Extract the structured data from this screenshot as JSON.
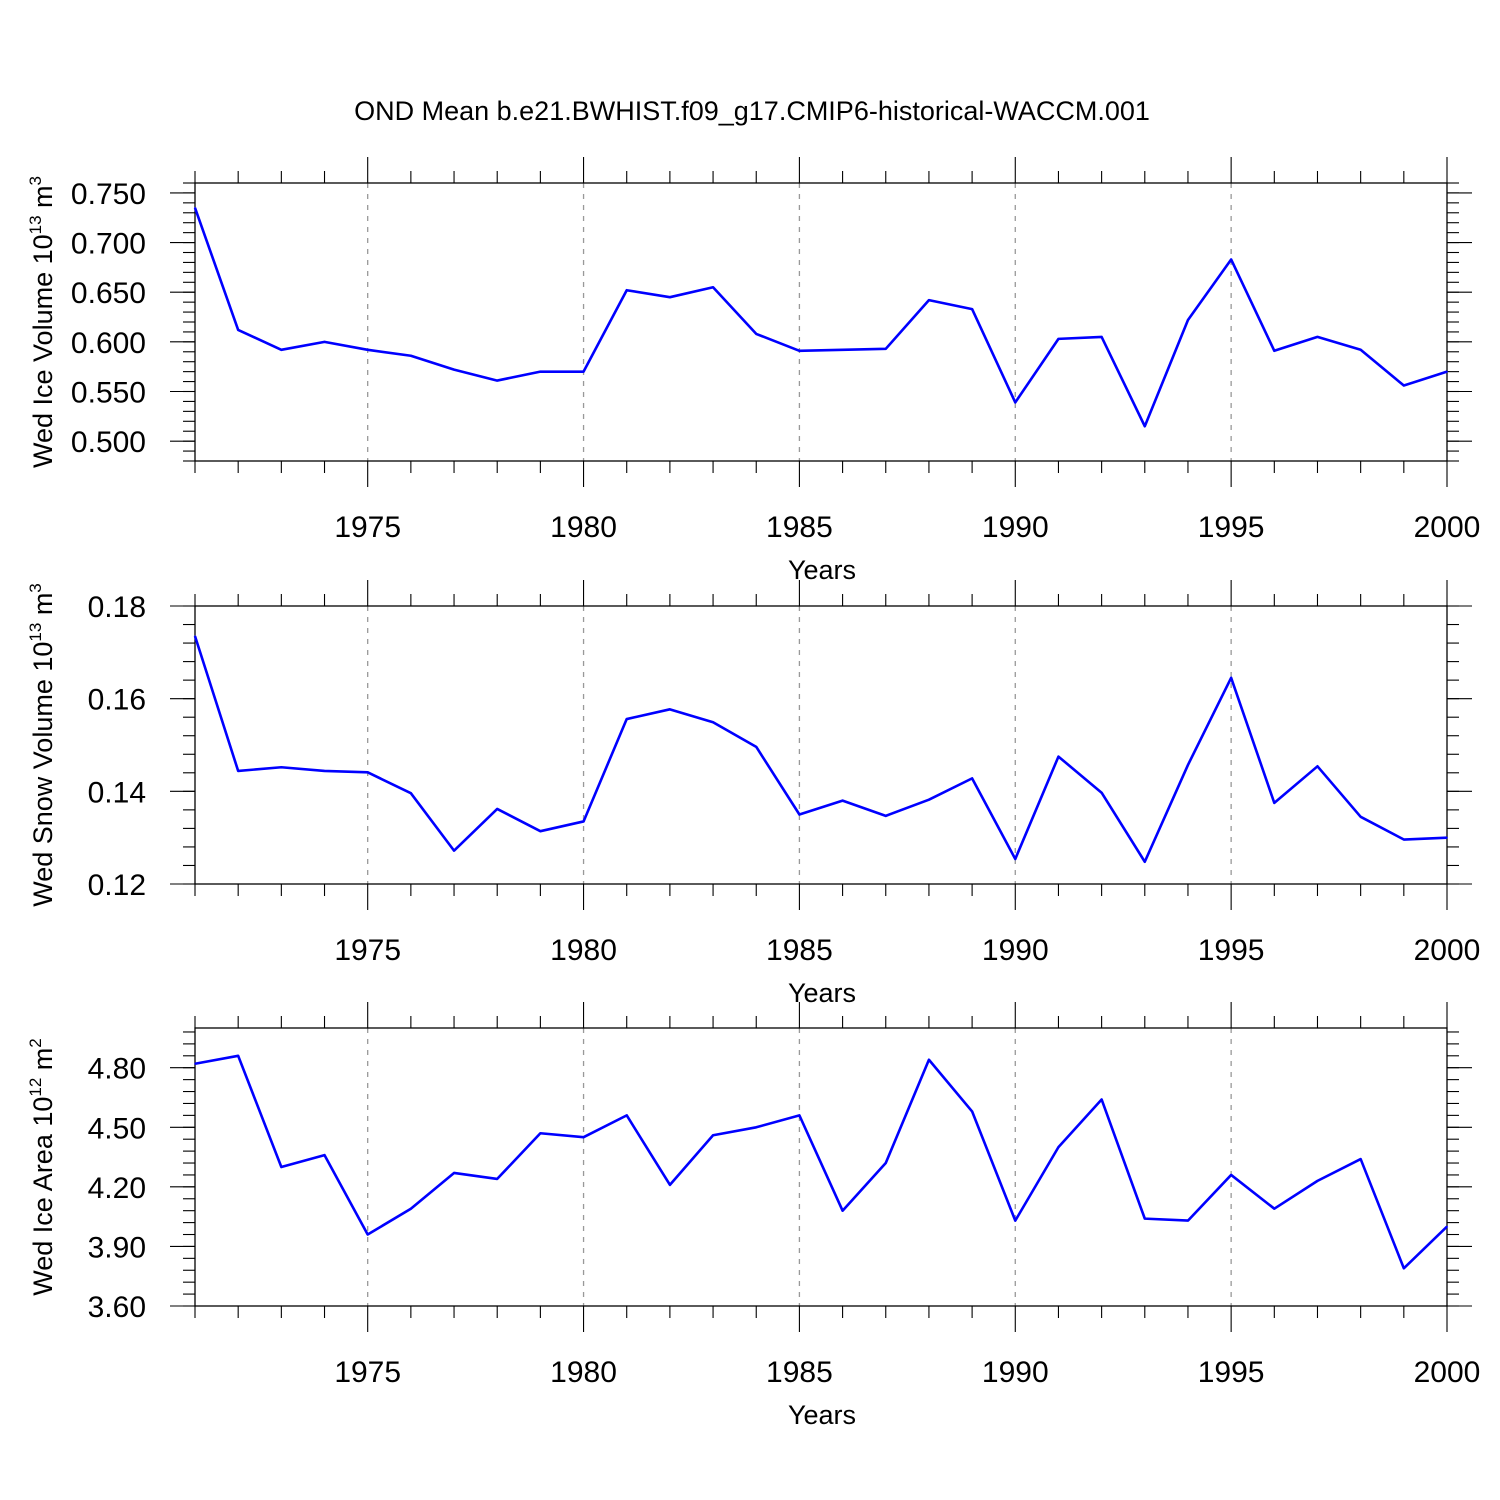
{
  "figure_title": "OND Mean b.e21.BWHIST.f09_g17.CMIP6-historical-WACCM.001",
  "colors": {
    "series": "#0000ff",
    "grid": "#999999",
    "axes": "#000000"
  },
  "chart_data": [
    {
      "type": "line",
      "ylabel": {
        "main": "Wed Ice Volume 10",
        "sup1": "13",
        "mid": " m",
        "sup2": "3"
      },
      "xlabel": "Years",
      "xlim": [
        1971,
        2000
      ],
      "ylim": [
        0.48,
        0.76
      ],
      "x_ticks": [
        "1975",
        "1980",
        "1985",
        "1990",
        "1995",
        "2000"
      ],
      "y_ticks": [
        "0.500",
        "0.550",
        "0.600",
        "0.650",
        "0.700",
        "0.750"
      ],
      "y_tick_values": [
        0.5,
        0.55,
        0.6,
        0.65,
        0.7,
        0.75
      ],
      "y_minor_step": 0.01,
      "grid": "vertical dashed at major x ticks",
      "x": [
        1971,
        1972,
        1973,
        1974,
        1975,
        1976,
        1977,
        1978,
        1979,
        1980,
        1981,
        1982,
        1983,
        1984,
        1985,
        1986,
        1987,
        1988,
        1989,
        1990,
        1991,
        1992,
        1993,
        1994,
        1995,
        1996,
        1997,
        1998,
        1999,
        2000
      ],
      "series": [
        {
          "values": [
            0.735,
            0.612,
            0.592,
            0.6,
            0.592,
            0.586,
            0.572,
            0.561,
            0.57,
            0.57,
            0.652,
            0.645,
            0.655,
            0.608,
            0.591,
            0.592,
            0.593,
            0.642,
            0.633,
            0.539,
            0.603,
            0.605,
            0.515,
            0.622,
            0.683,
            0.591,
            0.605,
            0.592,
            0.556,
            0.57
          ]
        }
      ]
    },
    {
      "type": "line",
      "ylabel": {
        "main": "Wed Snow Volume 10",
        "sup1": "13",
        "mid": " m",
        "sup2": "3"
      },
      "xlabel": "Years",
      "xlim": [
        1971,
        2000
      ],
      "ylim": [
        0.12,
        0.18
      ],
      "x_ticks": [
        "1975",
        "1980",
        "1985",
        "1990",
        "1995",
        "2000"
      ],
      "y_ticks": [
        "0.12",
        "0.14",
        "0.16",
        "0.18"
      ],
      "y_tick_values": [
        0.12,
        0.14,
        0.16,
        0.18
      ],
      "y_minor_step": 0.004,
      "grid": "vertical dashed at major x ticks",
      "x": [
        1971,
        1972,
        1973,
        1974,
        1975,
        1976,
        1977,
        1978,
        1979,
        1980,
        1981,
        1982,
        1983,
        1984,
        1985,
        1986,
        1987,
        1988,
        1989,
        1990,
        1991,
        1992,
        1993,
        1994,
        1995,
        1996,
        1997,
        1998,
        1999,
        2000
      ],
      "series": [
        {
          "values": [
            0.1735,
            0.1444,
            0.1452,
            0.1444,
            0.1441,
            0.1396,
            0.1272,
            0.1362,
            0.1314,
            0.1335,
            0.1556,
            0.1577,
            0.1549,
            0.1496,
            0.135,
            0.138,
            0.1347,
            0.1382,
            0.1428,
            0.1254,
            0.1475,
            0.1397,
            0.1248,
            0.1457,
            0.1645,
            0.1375,
            0.1454,
            0.1345,
            0.1296,
            0.13
          ]
        }
      ]
    },
    {
      "type": "line",
      "ylabel": {
        "main": "Wed Ice Area 10",
        "sup1": "12",
        "mid": " m",
        "sup2": "2"
      },
      "xlabel": "Years",
      "xlim": [
        1971,
        2000
      ],
      "ylim": [
        3.6,
        5.0
      ],
      "x_ticks": [
        "1975",
        "1980",
        "1985",
        "1990",
        "1995",
        "2000"
      ],
      "y_ticks": [
        "3.60",
        "3.90",
        "4.20",
        "4.50",
        "4.80"
      ],
      "y_tick_values": [
        3.6,
        3.9,
        4.2,
        4.5,
        4.8
      ],
      "y_minor_step": 0.06,
      "grid": "vertical dashed at major x ticks",
      "x": [
        1971,
        1972,
        1973,
        1974,
        1975,
        1976,
        1977,
        1978,
        1979,
        1980,
        1981,
        1982,
        1983,
        1984,
        1985,
        1986,
        1987,
        1988,
        1989,
        1990,
        1991,
        1992,
        1993,
        1994,
        1995,
        1996,
        1997,
        1998,
        1999,
        2000
      ],
      "series": [
        {
          "values": [
            4.82,
            4.86,
            4.3,
            4.36,
            3.96,
            4.09,
            4.27,
            4.24,
            4.47,
            4.45,
            4.56,
            4.21,
            4.46,
            4.5,
            4.56,
            4.08,
            4.32,
            4.84,
            4.58,
            4.03,
            4.4,
            4.64,
            4.04,
            4.03,
            4.26,
            4.09,
            4.23,
            4.34,
            3.79,
            4.0
          ]
        }
      ]
    }
  ]
}
